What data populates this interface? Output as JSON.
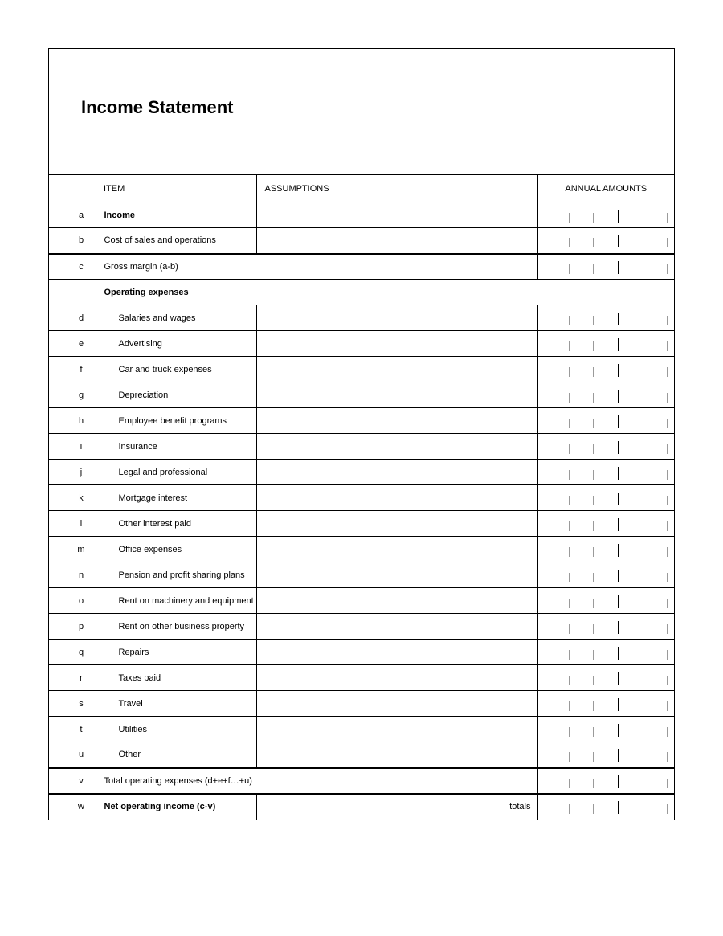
{
  "title": "Income Statement",
  "headers": {
    "item": "ITEM",
    "assumptions": "ASSUMPTIONS",
    "annual_amounts": "ANNUAL AMOUNTS"
  },
  "totals_label": "totals",
  "tick_count": 6,
  "rows": [
    {
      "letter": "a",
      "item": "Income",
      "bold": true,
      "indent": false,
      "mergeAssum": false,
      "ticks": true,
      "assumRight": "",
      "thickBottom": false
    },
    {
      "letter": "b",
      "item": "Cost of sales and operations",
      "bold": false,
      "indent": false,
      "mergeAssum": false,
      "ticks": true,
      "assumRight": "",
      "thickBottom": true
    },
    {
      "letter": "c",
      "item": "Gross margin (a-b)",
      "bold": false,
      "indent": false,
      "mergeAssum": true,
      "ticks": true,
      "assumRight": "",
      "thickBottom": false
    },
    {
      "letter": "",
      "item": "Operating expenses",
      "bold": true,
      "indent": false,
      "mergeAssum": true,
      "ticks": false,
      "assumRight": "",
      "thickBottom": false
    },
    {
      "letter": "d",
      "item": "Salaries and wages",
      "bold": false,
      "indent": true,
      "mergeAssum": false,
      "ticks": true,
      "assumRight": "",
      "thickBottom": false
    },
    {
      "letter": "e",
      "item": "Advertising",
      "bold": false,
      "indent": true,
      "mergeAssum": false,
      "ticks": true,
      "assumRight": "",
      "thickBottom": false
    },
    {
      "letter": "f",
      "item": "Car and truck expenses",
      "bold": false,
      "indent": true,
      "mergeAssum": false,
      "ticks": true,
      "assumRight": "",
      "thickBottom": false
    },
    {
      "letter": "g",
      "item": "Depreciation",
      "bold": false,
      "indent": true,
      "mergeAssum": false,
      "ticks": true,
      "assumRight": "",
      "thickBottom": false
    },
    {
      "letter": "h",
      "item": "Employee benefit programs",
      "bold": false,
      "indent": true,
      "mergeAssum": false,
      "ticks": true,
      "assumRight": "",
      "thickBottom": false
    },
    {
      "letter": "i",
      "item": "Insurance",
      "bold": false,
      "indent": true,
      "mergeAssum": false,
      "ticks": true,
      "assumRight": "",
      "thickBottom": false
    },
    {
      "letter": "j",
      "item": "Legal and professional",
      "bold": false,
      "indent": true,
      "mergeAssum": false,
      "ticks": true,
      "assumRight": "",
      "thickBottom": false
    },
    {
      "letter": "k",
      "item": "Mortgage interest",
      "bold": false,
      "indent": true,
      "mergeAssum": false,
      "ticks": true,
      "assumRight": "",
      "thickBottom": false
    },
    {
      "letter": "l",
      "item": "Other interest paid",
      "bold": false,
      "indent": true,
      "mergeAssum": false,
      "ticks": true,
      "assumRight": "",
      "thickBottom": false
    },
    {
      "letter": "m",
      "item": "Office expenses",
      "bold": false,
      "indent": true,
      "mergeAssum": false,
      "ticks": true,
      "assumRight": "",
      "thickBottom": false
    },
    {
      "letter": "n",
      "item": "Pension and profit sharing plans",
      "bold": false,
      "indent": true,
      "mergeAssum": false,
      "ticks": true,
      "assumRight": "",
      "thickBottom": false
    },
    {
      "letter": "o",
      "item": "Rent on machinery and equipment",
      "bold": false,
      "indent": true,
      "mergeAssum": false,
      "ticks": true,
      "assumRight": "",
      "thickBottom": false
    },
    {
      "letter": "p",
      "item": "Rent on other business property",
      "bold": false,
      "indent": true,
      "mergeAssum": false,
      "ticks": true,
      "assumRight": "",
      "thickBottom": false
    },
    {
      "letter": "q",
      "item": "Repairs",
      "bold": false,
      "indent": true,
      "mergeAssum": false,
      "ticks": true,
      "assumRight": "",
      "thickBottom": false
    },
    {
      "letter": "r",
      "item": "Taxes paid",
      "bold": false,
      "indent": true,
      "mergeAssum": false,
      "ticks": true,
      "assumRight": "",
      "thickBottom": false
    },
    {
      "letter": "s",
      "item": "Travel",
      "bold": false,
      "indent": true,
      "mergeAssum": false,
      "ticks": true,
      "assumRight": "",
      "thickBottom": false
    },
    {
      "letter": "t",
      "item": "Utilities",
      "bold": false,
      "indent": true,
      "mergeAssum": false,
      "ticks": true,
      "assumRight": "",
      "thickBottom": false
    },
    {
      "letter": "u",
      "item": "Other",
      "bold": false,
      "indent": true,
      "mergeAssum": false,
      "ticks": true,
      "assumRight": "",
      "thickBottom": true
    },
    {
      "letter": "v",
      "item": "Total operating expenses (d+e+f…+u)",
      "bold": false,
      "indent": false,
      "mergeAssum": true,
      "ticks": true,
      "assumRight": "",
      "thickBottom": true
    },
    {
      "letter": "w",
      "item": "Net operating income (c-v)",
      "bold": true,
      "indent": false,
      "mergeAssum": false,
      "ticks": true,
      "assumRight": "totals",
      "thickBottom": false,
      "lastRow": true
    }
  ],
  "colors": {
    "border": "#000000",
    "tick_minor": "#9a9a9a",
    "tick_major": "#000000",
    "background": "#ffffff",
    "text": "#000000"
  },
  "fonts": {
    "title_size_pt": 17,
    "body_size_pt": 8,
    "family": "Century Gothic / Futura"
  }
}
